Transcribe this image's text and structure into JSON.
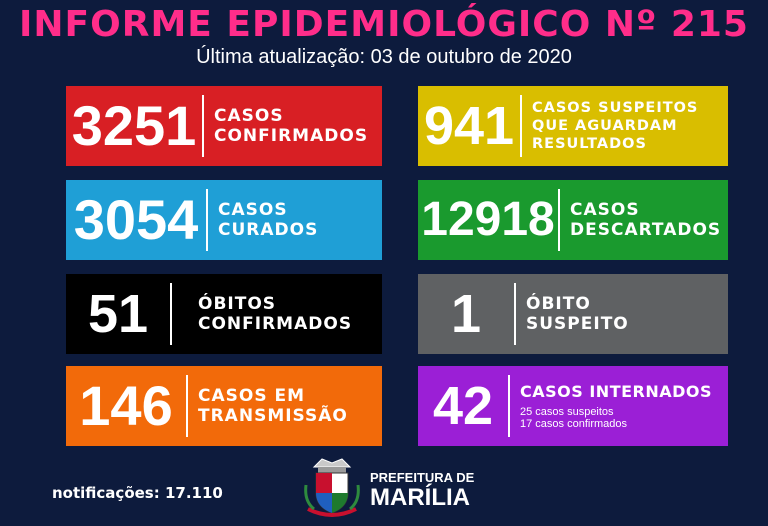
{
  "header": {
    "title": "INFORME EPIDEMIOLÓGICO Nº 215",
    "subtitle": "Última atualização: 03 de outubro de 2020"
  },
  "cards": [
    {
      "value": "3251",
      "label": "CASOS\nCONFIRMADOS",
      "color": "#d81f24"
    },
    {
      "value": "941",
      "label": "CASOS SUSPEITOS\nQUE AGUARDAM\nRESULTADOS",
      "color": "#d9be00"
    },
    {
      "value": "3054",
      "label": "CASOS\nCURADOS",
      "color": "#1f9fd6"
    },
    {
      "value": "12918",
      "label": "CASOS\nDESCARTADOS",
      "color": "#1a9a2e"
    },
    {
      "value": "51",
      "label": "ÓBITOS\nCONFIRMADOS",
      "color": "#000000"
    },
    {
      "value": "1",
      "label": "ÓBITO\nSUSPEITO",
      "color": "#5f6163"
    },
    {
      "value": "146",
      "label": "CASOS EM\nTRANSMISSÃO",
      "color": "#f26a0a"
    },
    {
      "value": "42",
      "label": "CASOS INTERNADOS",
      "sub": "25 casos suspeitos\n17 casos confirmados",
      "color": "#9b1fd6"
    }
  ],
  "footer": {
    "notifications": "notificações: 17.110",
    "org_line1": "PREFEITURA DE",
    "org_line2": "MARÍLIA"
  }
}
